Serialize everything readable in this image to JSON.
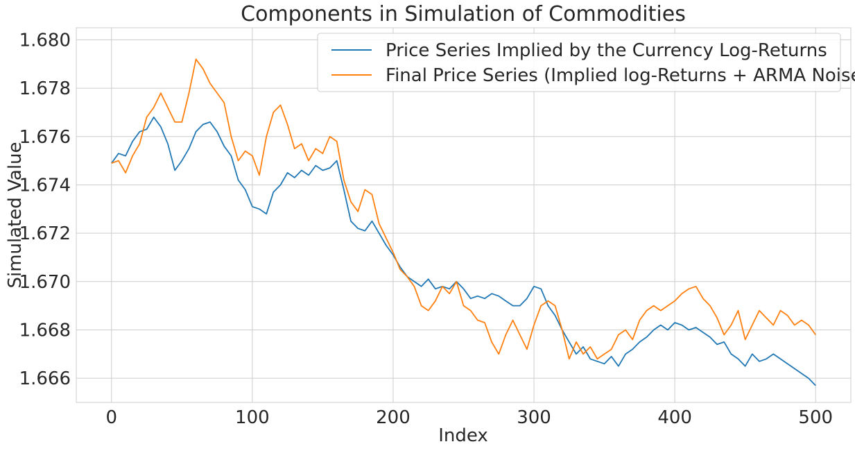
{
  "chart_data": {
    "type": "line",
    "title": "Components in Simulation of Commodities",
    "xlabel": "Index",
    "ylabel": "Simulated Value",
    "xlim": [
      -25,
      525
    ],
    "ylim": [
      1.665,
      1.6805
    ],
    "xticks": [
      0,
      100,
      200,
      300,
      400,
      500
    ],
    "xtick_labels": [
      "0",
      "100",
      "200",
      "300",
      "400",
      "500"
    ],
    "yticks": [
      1.666,
      1.668,
      1.67,
      1.672,
      1.674,
      1.676,
      1.678,
      1.68
    ],
    "ytick_labels": [
      "1.666",
      "1.668",
      "1.670",
      "1.672",
      "1.674",
      "1.676",
      "1.678",
      "1.680"
    ],
    "grid": true,
    "legend_position": "top-right",
    "series": [
      {
        "name": "Price Series Implied by the Currency Log-Returns",
        "color": "#1f77b4",
        "x": [
          0,
          5,
          10,
          15,
          20,
          25,
          30,
          35,
          40,
          45,
          50,
          55,
          60,
          65,
          70,
          75,
          80,
          85,
          90,
          95,
          100,
          105,
          110,
          115,
          120,
          125,
          130,
          135,
          140,
          145,
          150,
          155,
          160,
          165,
          170,
          175,
          180,
          185,
          190,
          195,
          200,
          205,
          210,
          215,
          220,
          225,
          230,
          235,
          240,
          245,
          250,
          255,
          260,
          265,
          270,
          275,
          280,
          285,
          290,
          295,
          300,
          305,
          310,
          315,
          320,
          325,
          330,
          335,
          340,
          345,
          350,
          355,
          360,
          365,
          370,
          375,
          380,
          385,
          390,
          395,
          400,
          405,
          410,
          415,
          420,
          425,
          430,
          435,
          440,
          445,
          450,
          455,
          460,
          465,
          470,
          475,
          480,
          485,
          490,
          495,
          500
        ],
        "y": [
          1.6749,
          1.6753,
          1.6752,
          1.6758,
          1.6762,
          1.6763,
          1.6768,
          1.6764,
          1.6757,
          1.6746,
          1.675,
          1.6755,
          1.6762,
          1.6765,
          1.6766,
          1.6762,
          1.6756,
          1.6752,
          1.6742,
          1.6738,
          1.6731,
          1.673,
          1.6728,
          1.6737,
          1.674,
          1.6745,
          1.6743,
          1.6746,
          1.6744,
          1.6748,
          1.6746,
          1.6747,
          1.675,
          1.6738,
          1.6725,
          1.6722,
          1.6721,
          1.6725,
          1.672,
          1.6715,
          1.6711,
          1.6706,
          1.6702,
          1.67,
          1.6698,
          1.6701,
          1.6697,
          1.6698,
          1.6697,
          1.67,
          1.6697,
          1.6693,
          1.6694,
          1.6693,
          1.6695,
          1.6694,
          1.6692,
          1.669,
          1.669,
          1.6693,
          1.6698,
          1.6697,
          1.669,
          1.6686,
          1.668,
          1.6675,
          1.667,
          1.6673,
          1.6668,
          1.6667,
          1.6666,
          1.6669,
          1.6665,
          1.667,
          1.6672,
          1.6675,
          1.6677,
          1.668,
          1.6682,
          1.668,
          1.6683,
          1.6682,
          1.668,
          1.6681,
          1.6679,
          1.6677,
          1.6674,
          1.6675,
          1.667,
          1.6668,
          1.6665,
          1.667,
          1.6667,
          1.6668,
          1.667,
          1.6668,
          1.6666,
          1.6664,
          1.6662,
          1.666,
          1.6657
        ]
      },
      {
        "name": "Final Price Series (Implied log-Returns + ARMA Noise",
        "color": "#ff7f0e",
        "x": [
          0,
          5,
          10,
          15,
          20,
          25,
          30,
          35,
          40,
          45,
          50,
          55,
          60,
          65,
          70,
          75,
          80,
          85,
          90,
          95,
          100,
          105,
          110,
          115,
          120,
          125,
          130,
          135,
          140,
          145,
          150,
          155,
          160,
          165,
          170,
          175,
          180,
          185,
          190,
          195,
          200,
          205,
          210,
          215,
          220,
          225,
          230,
          235,
          240,
          245,
          250,
          255,
          260,
          265,
          270,
          275,
          280,
          285,
          290,
          295,
          300,
          305,
          310,
          315,
          320,
          325,
          330,
          335,
          340,
          345,
          350,
          355,
          360,
          365,
          370,
          375,
          380,
          385,
          390,
          395,
          400,
          405,
          410,
          415,
          420,
          425,
          430,
          435,
          440,
          445,
          450,
          455,
          460,
          465,
          470,
          475,
          480,
          485,
          490,
          495,
          500
        ],
        "y": [
          1.6749,
          1.675,
          1.6745,
          1.6752,
          1.6757,
          1.6768,
          1.6772,
          1.6778,
          1.6772,
          1.6766,
          1.6766,
          1.6778,
          1.6792,
          1.6788,
          1.6782,
          1.6778,
          1.6774,
          1.676,
          1.675,
          1.6754,
          1.6752,
          1.6744,
          1.676,
          1.677,
          1.6773,
          1.6765,
          1.6755,
          1.6757,
          1.675,
          1.6755,
          1.6753,
          1.676,
          1.6758,
          1.6742,
          1.6733,
          1.6729,
          1.6738,
          1.6736,
          1.6724,
          1.6718,
          1.6712,
          1.6705,
          1.6702,
          1.6698,
          1.669,
          1.6688,
          1.6692,
          1.6698,
          1.6695,
          1.67,
          1.669,
          1.6688,
          1.6684,
          1.6683,
          1.6675,
          1.667,
          1.6678,
          1.6684,
          1.6678,
          1.6672,
          1.6682,
          1.669,
          1.6692,
          1.669,
          1.668,
          1.6668,
          1.6675,
          1.667,
          1.6673,
          1.6668,
          1.667,
          1.6672,
          1.6678,
          1.668,
          1.6676,
          1.6684,
          1.6688,
          1.669,
          1.6688,
          1.669,
          1.6692,
          1.6695,
          1.6697,
          1.6698,
          1.6693,
          1.669,
          1.6685,
          1.6678,
          1.6682,
          1.6688,
          1.6676,
          1.6682,
          1.6688,
          1.6685,
          1.6682,
          1.6688,
          1.6686,
          1.6682,
          1.6684,
          1.6682,
          1.6678
        ]
      }
    ]
  }
}
